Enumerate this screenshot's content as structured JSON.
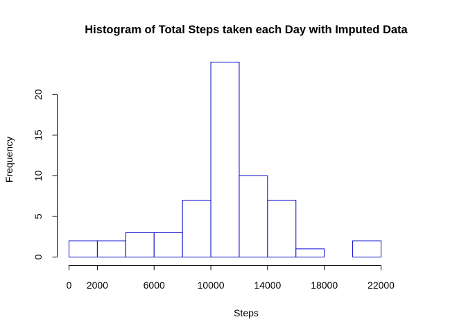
{
  "chart_data": {
    "type": "bar",
    "title": "Histogram of Total Steps taken each Day with Imputed Data",
    "xlabel": "Steps",
    "ylabel": "Frequency",
    "bins": [
      {
        "from": 0,
        "to": 2000,
        "count": 2
      },
      {
        "from": 2000,
        "to": 4000,
        "count": 2
      },
      {
        "from": 4000,
        "to": 6000,
        "count": 3
      },
      {
        "from": 6000,
        "to": 8000,
        "count": 3
      },
      {
        "from": 8000,
        "to": 10000,
        "count": 7
      },
      {
        "from": 10000,
        "to": 12000,
        "count": 24
      },
      {
        "from": 12000,
        "to": 14000,
        "count": 10
      },
      {
        "from": 14000,
        "to": 16000,
        "count": 7
      },
      {
        "from": 16000,
        "to": 18000,
        "count": 1
      },
      {
        "from": 18000,
        "to": 20000,
        "count": 0
      },
      {
        "from": 20000,
        "to": 22000,
        "count": 2
      }
    ],
    "xlim": [
      0,
      22000
    ],
    "ylim": [
      0,
      24
    ],
    "x_ticks": [
      0,
      2000,
      6000,
      10000,
      14000,
      18000,
      22000
    ],
    "x_tick_labels": [
      "0",
      "2000",
      "6000",
      "10000",
      "14000",
      "18000",
      "22000"
    ],
    "y_ticks": [
      0,
      5,
      10,
      15,
      20
    ],
    "y_tick_labels": [
      "0",
      "5",
      "10",
      "15",
      "20"
    ],
    "bar_border_color": "#0000cd",
    "bar_fill_color": "#ffffff",
    "grid": false,
    "legend": "none"
  }
}
